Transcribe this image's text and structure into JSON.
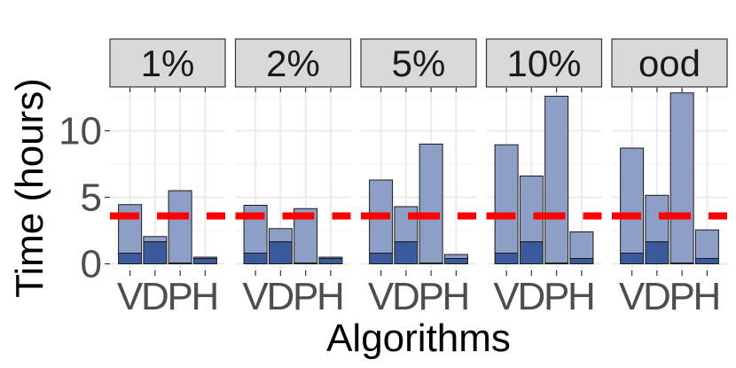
{
  "chart_data": {
    "type": "bar",
    "stacked": true,
    "facets": [
      "1%",
      "2%",
      "5%",
      "10%",
      "ood"
    ],
    "categories": [
      "V",
      "D",
      "P",
      "H"
    ],
    "xlabel": "Algorithms",
    "ylabel": "Time (hours)",
    "ylim": [
      -0.5,
      13.3
    ],
    "yticks": [
      0,
      5,
      10
    ],
    "grid": true,
    "reference_line_y": 3.6,
    "reference_line_color": "#FF0000",
    "colors": {
      "bottom": "#3A5A9C",
      "top": "#8D9FC6",
      "strip": "#D9D9D9"
    },
    "panels": [
      {
        "facet": "1%",
        "bottom": [
          0.8,
          1.65,
          0.05,
          0.4
        ],
        "total": [
          4.45,
          2.05,
          5.5,
          0.5
        ]
      },
      {
        "facet": "2%",
        "bottom": [
          0.8,
          1.65,
          0.05,
          0.4
        ],
        "total": [
          4.4,
          2.65,
          4.15,
          0.5
        ]
      },
      {
        "facet": "5%",
        "bottom": [
          0.8,
          1.65,
          0.05,
          0.4
        ],
        "total": [
          6.3,
          4.3,
          9.0,
          0.7
        ]
      },
      {
        "facet": "10%",
        "bottom": [
          0.8,
          1.65,
          0.05,
          0.4
        ],
        "total": [
          8.95,
          6.6,
          12.6,
          2.4
        ]
      },
      {
        "facet": "ood",
        "bottom": [
          0.8,
          1.65,
          0.05,
          0.4
        ],
        "total": [
          8.7,
          5.15,
          12.85,
          2.55
        ]
      }
    ]
  }
}
